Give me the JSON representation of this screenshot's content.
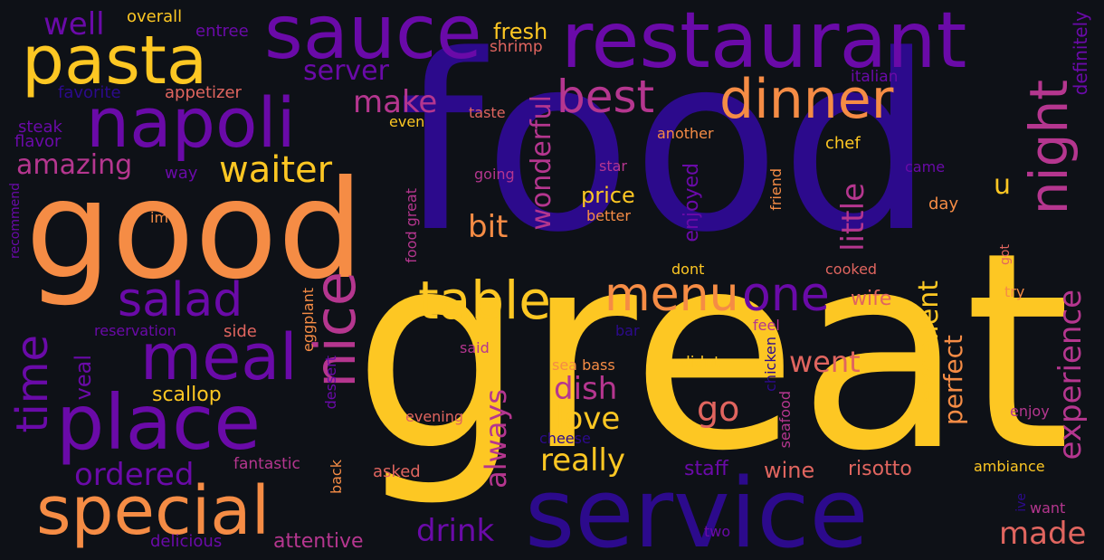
{
  "palette": {
    "background": "#0e1117",
    "deep_indigo": "#2c0a8c",
    "purple": "#6a0aa8",
    "magenta": "#b5368f",
    "salmon": "#e0655f",
    "orange": "#f58c45",
    "yellow": "#fdc723"
  },
  "words": [
    {
      "text": "food",
      "color": "#2c0a8c"
    },
    {
      "text": "great",
      "color": "#fdc723"
    },
    {
      "text": "good",
      "color": "#f58c45"
    },
    {
      "text": "service",
      "color": "#2c0a8c"
    },
    {
      "text": "restaurant",
      "color": "#6a0aa8"
    },
    {
      "text": "place",
      "color": "#6a0aa8"
    },
    {
      "text": "sauce",
      "color": "#6a0aa8"
    },
    {
      "text": "napoli",
      "color": "#6a0aa8"
    },
    {
      "text": "pasta",
      "color": "#fdc723"
    },
    {
      "text": "special",
      "color": "#f58c45"
    },
    {
      "text": "meal",
      "color": "#6a0aa8"
    },
    {
      "text": "nice",
      "color": "#b5368f"
    },
    {
      "text": "dinner",
      "color": "#f58c45"
    },
    {
      "text": "night",
      "color": "#b5368f"
    },
    {
      "text": "table",
      "color": "#fdc723"
    },
    {
      "text": "menu",
      "color": "#f58c45"
    },
    {
      "text": "one",
      "color": "#6a0aa8"
    },
    {
      "text": "best",
      "color": "#b5368f"
    },
    {
      "text": "salad",
      "color": "#6a0aa8"
    },
    {
      "text": "time",
      "color": "#6a0aa8"
    },
    {
      "text": "waiter",
      "color": "#fdc723"
    },
    {
      "text": "experience",
      "color": "#b5368f"
    },
    {
      "text": "excellent",
      "color": "#fdc723"
    },
    {
      "text": "made",
      "color": "#e0655f"
    },
    {
      "text": "drink",
      "color": "#6a0aa8"
    },
    {
      "text": "really",
      "color": "#fdc723"
    },
    {
      "text": "go",
      "color": "#e0655f"
    },
    {
      "text": "dish",
      "color": "#b5368f"
    },
    {
      "text": "love",
      "color": "#fdc723"
    },
    {
      "text": "always",
      "color": "#b5368f"
    },
    {
      "text": "wonderful",
      "color": "#b5368f"
    },
    {
      "text": "little",
      "color": "#b5368f"
    },
    {
      "text": "perfect",
      "color": "#f58c45"
    },
    {
      "text": "ordered",
      "color": "#6a0aa8"
    },
    {
      "text": "amazing",
      "color": "#b5368f"
    },
    {
      "text": "make",
      "color": "#b5368f"
    },
    {
      "text": "server",
      "color": "#6a0aa8"
    },
    {
      "text": "well",
      "color": "#6a0aa8"
    },
    {
      "text": "went",
      "color": "#e0655f"
    },
    {
      "text": "bit",
      "color": "#f58c45"
    },
    {
      "text": "price",
      "color": "#fdc723"
    },
    {
      "text": "veal",
      "color": "#6a0aa8"
    },
    {
      "text": "scallop",
      "color": "#fdc723"
    },
    {
      "text": "attentive",
      "color": "#b5368f"
    },
    {
      "text": "staff",
      "color": "#6a0aa8"
    },
    {
      "text": "wine",
      "color": "#e0655f"
    },
    {
      "text": "risotto",
      "color": "#e0655f"
    },
    {
      "text": "fresh",
      "color": "#fdc723"
    },
    {
      "text": "u",
      "color": "#fdc723"
    },
    {
      "text": "enjoyed",
      "color": "#6a0aa8"
    },
    {
      "text": "wife",
      "color": "#e0655f"
    },
    {
      "text": "definitely",
      "color": "#6a0aa8"
    },
    {
      "text": "chef",
      "color": "#fdc723"
    },
    {
      "text": "shrimp",
      "color": "#e0655f"
    },
    {
      "text": "overall",
      "color": "#fdc723"
    },
    {
      "text": "entree",
      "color": "#6a0aa8"
    },
    {
      "text": "favorite",
      "color": "#2c0a8c"
    },
    {
      "text": "appetizer",
      "color": "#e0655f"
    },
    {
      "text": "steak",
      "color": "#6a0aa8"
    },
    {
      "text": "flavor",
      "color": "#6a0aa8"
    },
    {
      "text": "way",
      "color": "#6a0aa8"
    },
    {
      "text": "recommend",
      "color": "#6a0aa8"
    },
    {
      "text": "im",
      "color": "#f58c45"
    },
    {
      "text": "reservation",
      "color": "#6a0aa8"
    },
    {
      "text": "side",
      "color": "#e0655f"
    },
    {
      "text": "fantastic",
      "color": "#b5368f"
    },
    {
      "text": "delicious",
      "color": "#6a0aa8"
    },
    {
      "text": "back",
      "color": "#f58c45"
    },
    {
      "text": "asked",
      "color": "#e0655f"
    },
    {
      "text": "eggplant",
      "color": "#f58c45"
    },
    {
      "text": "dessert",
      "color": "#6a0aa8"
    },
    {
      "text": "food great",
      "color": "#b5368f"
    },
    {
      "text": "even",
      "color": "#fdc723"
    },
    {
      "text": "taste",
      "color": "#e0655f"
    },
    {
      "text": "going",
      "color": "#b5368f"
    },
    {
      "text": "another",
      "color": "#f58c45"
    },
    {
      "text": "star",
      "color": "#b5368f"
    },
    {
      "text": "better",
      "color": "#f58c45"
    },
    {
      "text": "dont",
      "color": "#fdc723"
    },
    {
      "text": "friend",
      "color": "#f58c45"
    },
    {
      "text": "came",
      "color": "#6a0aa8"
    },
    {
      "text": "day",
      "color": "#f58c45"
    },
    {
      "text": "cooked",
      "color": "#e0655f"
    },
    {
      "text": "italian",
      "color": "#6a0aa8"
    },
    {
      "text": "got",
      "color": "#e0655f"
    },
    {
      "text": "try",
      "color": "#f58c45"
    },
    {
      "text": "said",
      "color": "#b5368f"
    },
    {
      "text": "sea bass",
      "color": "#f58c45"
    },
    {
      "text": "didnt",
      "color": "#fdc723"
    },
    {
      "text": "chicken",
      "color": "#2c0a8c"
    },
    {
      "text": "seafood",
      "color": "#b5368f"
    },
    {
      "text": "feel",
      "color": "#b5368f"
    },
    {
      "text": "bar",
      "color": "#2c0a8c"
    },
    {
      "text": "evening",
      "color": "#e0655f"
    },
    {
      "text": "cheese",
      "color": "#2c0a8c"
    },
    {
      "text": "enjoy",
      "color": "#b5368f"
    },
    {
      "text": "ambiance",
      "color": "#fdc723"
    },
    {
      "text": "ive",
      "color": "#2c0a8c"
    },
    {
      "text": "want",
      "color": "#b5368f"
    },
    {
      "text": "two",
      "color": "#6a0aa8"
    }
  ]
}
